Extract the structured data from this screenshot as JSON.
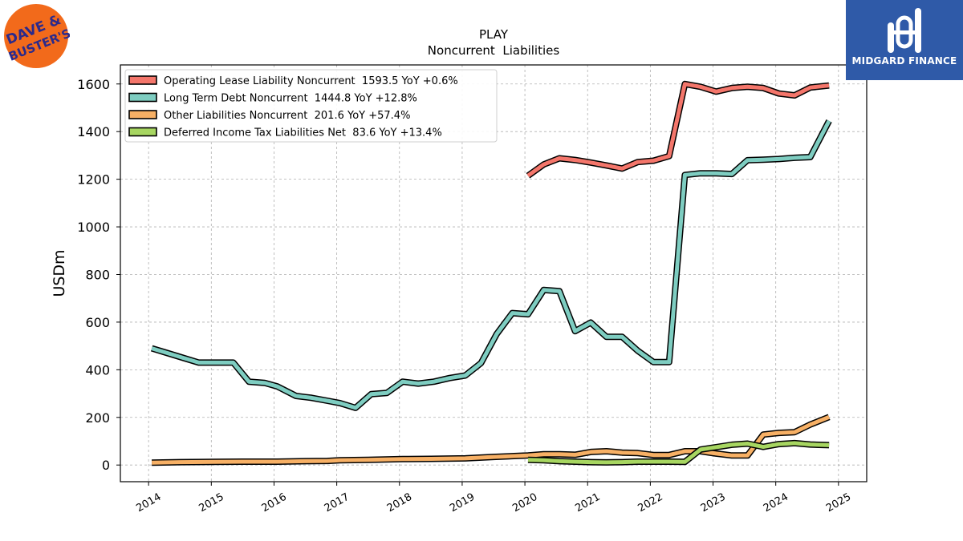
{
  "chart_data": {
    "type": "line",
    "title": "PLAY",
    "subtitle": "Noncurrent  Liabilities",
    "ylabel": "USDm",
    "xlabel": "",
    "ylim": [
      -70,
      1680
    ],
    "xlim": [
      2013.55,
      2025.45
    ],
    "yticks": [
      0,
      200,
      400,
      600,
      800,
      1000,
      1200,
      1400,
      1600
    ],
    "xticks": [
      "2014",
      "2015",
      "2016",
      "2017",
      "2018",
      "2019",
      "2020",
      "2021",
      "2022",
      "2023",
      "2024",
      "2025"
    ],
    "grid": true,
    "legend_position": "top-left",
    "series": [
      {
        "name": "Operating Lease Liability Noncurrent  1593.5 YoY +0.6%",
        "color": "#f4766b",
        "points": [
          [
            2020.05,
            1215
          ],
          [
            2020.3,
            1262
          ],
          [
            2020.55,
            1288
          ],
          [
            2020.8,
            1281
          ],
          [
            2021.05,
            1270
          ],
          [
            2021.3,
            1258
          ],
          [
            2021.55,
            1245
          ],
          [
            2021.8,
            1272
          ],
          [
            2022.05,
            1278
          ],
          [
            2022.3,
            1297
          ],
          [
            2022.55,
            1600
          ],
          [
            2022.8,
            1588
          ],
          [
            2023.05,
            1568
          ],
          [
            2023.3,
            1583
          ],
          [
            2023.55,
            1588
          ],
          [
            2023.8,
            1583
          ],
          [
            2024.05,
            1560
          ],
          [
            2024.3,
            1552
          ],
          [
            2024.55,
            1585
          ],
          [
            2024.85,
            1593.5
          ]
        ]
      },
      {
        "name": "Long Term Debt Noncurrent  1444.8 YoY +12.8%",
        "color": "#7ecdc1",
        "points": [
          [
            2014.05,
            490
          ],
          [
            2014.3,
            470
          ],
          [
            2014.55,
            450
          ],
          [
            2014.8,
            430
          ],
          [
            2015.05,
            430
          ],
          [
            2015.35,
            430
          ],
          [
            2015.6,
            350
          ],
          [
            2015.85,
            345
          ],
          [
            2016.05,
            330
          ],
          [
            2016.35,
            290
          ],
          [
            2016.6,
            282
          ],
          [
            2016.85,
            270
          ],
          [
            2017.05,
            260
          ],
          [
            2017.3,
            240
          ],
          [
            2017.55,
            298
          ],
          [
            2017.8,
            303
          ],
          [
            2018.05,
            350
          ],
          [
            2018.3,
            342
          ],
          [
            2018.55,
            350
          ],
          [
            2018.8,
            365
          ],
          [
            2019.05,
            376
          ],
          [
            2019.3,
            428
          ],
          [
            2019.55,
            550
          ],
          [
            2019.8,
            638
          ],
          [
            2020.05,
            633
          ],
          [
            2020.3,
            735
          ],
          [
            2020.55,
            730
          ],
          [
            2020.8,
            562
          ],
          [
            2021.05,
            598
          ],
          [
            2021.3,
            538
          ],
          [
            2021.55,
            538
          ],
          [
            2021.8,
            480
          ],
          [
            2022.05,
            432
          ],
          [
            2022.3,
            432
          ],
          [
            2022.55,
            1218
          ],
          [
            2022.8,
            1225
          ],
          [
            2023.05,
            1225
          ],
          [
            2023.3,
            1222
          ],
          [
            2023.55,
            1280
          ],
          [
            2023.8,
            1282
          ],
          [
            2024.05,
            1285
          ],
          [
            2024.3,
            1290
          ],
          [
            2024.55,
            1293
          ],
          [
            2024.85,
            1444.8
          ]
        ]
      },
      {
        "name": "Other Liabilities Noncurrent  201.6 YoY +57.4%",
        "color": "#f7b065",
        "points": [
          [
            2014.05,
            10
          ],
          [
            2014.5,
            12
          ],
          [
            2015.05,
            13
          ],
          [
            2015.5,
            14
          ],
          [
            2016.05,
            14
          ],
          [
            2016.5,
            16
          ],
          [
            2016.85,
            17
          ],
          [
            2017.05,
            20
          ],
          [
            2017.5,
            22
          ],
          [
            2018.05,
            25
          ],
          [
            2018.5,
            26
          ],
          [
            2019.05,
            28
          ],
          [
            2019.5,
            34
          ],
          [
            2020.05,
            40
          ],
          [
            2020.3,
            45
          ],
          [
            2020.55,
            45
          ],
          [
            2020.8,
            43
          ],
          [
            2021.05,
            55
          ],
          [
            2021.3,
            58
          ],
          [
            2021.55,
            52
          ],
          [
            2021.8,
            50
          ],
          [
            2022.05,
            42
          ],
          [
            2022.3,
            42
          ],
          [
            2022.55,
            58
          ],
          [
            2022.8,
            58
          ],
          [
            2023.05,
            48
          ],
          [
            2023.3,
            40
          ],
          [
            2023.55,
            40
          ],
          [
            2023.8,
            128
          ],
          [
            2024.05,
            135
          ],
          [
            2024.3,
            138
          ],
          [
            2024.55,
            170
          ],
          [
            2024.85,
            201.6
          ]
        ]
      },
      {
        "name": "Deferred Income Tax Liabilities Net  83.6 YoY +13.4%",
        "color": "#a7d661",
        "points": [
          [
            2020.05,
            22
          ],
          [
            2020.3,
            20
          ],
          [
            2020.55,
            16
          ],
          [
            2020.8,
            14
          ],
          [
            2021.05,
            12
          ],
          [
            2021.3,
            11
          ],
          [
            2021.55,
            12
          ],
          [
            2021.8,
            14
          ],
          [
            2022.05,
            14
          ],
          [
            2022.3,
            14
          ],
          [
            2022.55,
            13
          ],
          [
            2022.8,
            65
          ],
          [
            2023.05,
            75
          ],
          [
            2023.3,
            85
          ],
          [
            2023.55,
            90
          ],
          [
            2023.8,
            76
          ],
          [
            2024.05,
            88
          ],
          [
            2024.3,
            92
          ],
          [
            2024.55,
            86
          ],
          [
            2024.85,
            83.6
          ]
        ]
      }
    ]
  },
  "brand": {
    "name": "MIDGARD FINANCE",
    "color": "#2f5aa8",
    "icon": "midgard-logo-icon"
  },
  "logo": {
    "name": "DAVE & BUSTER'S",
    "line1": "DAVE &",
    "line2": "BUSTER'S",
    "circle_color": "#f26a1b",
    "text_color": "#2a2a8c"
  }
}
